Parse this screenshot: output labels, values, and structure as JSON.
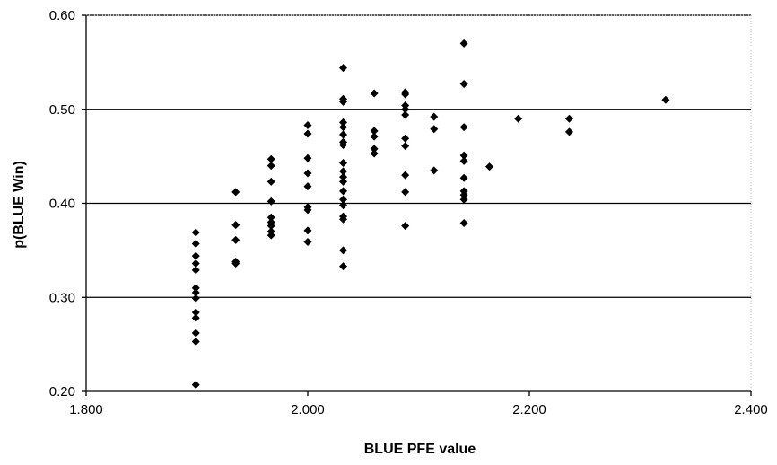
{
  "chart_data": {
    "type": "scatter",
    "title": "",
    "xlabel": "BLUE PFE value",
    "ylabel": "p(BLUE Win)",
    "xlim": [
      1.8,
      2.4
    ],
    "ylim": [
      0.2,
      0.6
    ],
    "x_ticks": [
      1.8,
      2.0,
      2.2,
      2.4
    ],
    "x_tick_labels": [
      "1.800",
      "2.000",
      "2.200",
      "2.400"
    ],
    "y_ticks": [
      0.2,
      0.3,
      0.4,
      0.5,
      0.6
    ],
    "y_tick_labels": [
      "0.20",
      "0.30",
      "0.40",
      "0.50",
      "0.60"
    ],
    "grid": "horizontal major gridlines",
    "legend": "none",
    "marker": "diamond",
    "marker_color": "#000000",
    "series": [
      {
        "points": [
          [
            1.899,
            0.369
          ],
          [
            1.899,
            0.357
          ],
          [
            1.899,
            0.344
          ],
          [
            1.899,
            0.336
          ],
          [
            1.899,
            0.329
          ],
          [
            1.899,
            0.31
          ],
          [
            1.899,
            0.305
          ],
          [
            1.899,
            0.299
          ],
          [
            1.899,
            0.284
          ],
          [
            1.899,
            0.278
          ],
          [
            1.899,
            0.262
          ],
          [
            1.899,
            0.253
          ],
          [
            1.899,
            0.207
          ],
          [
            1.935,
            0.412
          ],
          [
            1.935,
            0.377
          ],
          [
            1.935,
            0.361
          ],
          [
            1.935,
            0.338
          ],
          [
            1.935,
            0.336
          ],
          [
            1.967,
            0.447
          ],
          [
            1.967,
            0.44
          ],
          [
            1.967,
            0.423
          ],
          [
            1.967,
            0.402
          ],
          [
            1.967,
            0.385
          ],
          [
            1.967,
            0.38
          ],
          [
            1.967,
            0.376
          ],
          [
            1.967,
            0.37
          ],
          [
            1.967,
            0.366
          ],
          [
            2.0,
            0.483
          ],
          [
            2.0,
            0.474
          ],
          [
            2.0,
            0.448
          ],
          [
            2.0,
            0.432
          ],
          [
            2.0,
            0.418
          ],
          [
            2.0,
            0.396
          ],
          [
            2.0,
            0.393
          ],
          [
            2.0,
            0.371
          ],
          [
            2.0,
            0.359
          ],
          [
            2.032,
            0.544
          ],
          [
            2.032,
            0.511
          ],
          [
            2.032,
            0.508
          ],
          [
            2.032,
            0.486
          ],
          [
            2.032,
            0.481
          ],
          [
            2.032,
            0.473
          ],
          [
            2.032,
            0.465
          ],
          [
            2.032,
            0.462
          ],
          [
            2.032,
            0.443
          ],
          [
            2.032,
            0.434
          ],
          [
            2.032,
            0.428
          ],
          [
            2.032,
            0.423
          ],
          [
            2.032,
            0.413
          ],
          [
            2.032,
            0.404
          ],
          [
            2.032,
            0.398
          ],
          [
            2.032,
            0.386
          ],
          [
            2.032,
            0.383
          ],
          [
            2.032,
            0.35
          ],
          [
            2.032,
            0.333
          ],
          [
            2.06,
            0.517
          ],
          [
            2.06,
            0.477
          ],
          [
            2.06,
            0.471
          ],
          [
            2.06,
            0.458
          ],
          [
            2.06,
            0.453
          ],
          [
            2.088,
            0.518
          ],
          [
            2.088,
            0.516
          ],
          [
            2.088,
            0.504
          ],
          [
            2.088,
            0.5
          ],
          [
            2.088,
            0.494
          ],
          [
            2.088,
            0.469
          ],
          [
            2.088,
            0.461
          ],
          [
            2.088,
            0.43
          ],
          [
            2.088,
            0.412
          ],
          [
            2.088,
            0.376
          ],
          [
            2.114,
            0.492
          ],
          [
            2.114,
            0.479
          ],
          [
            2.114,
            0.435
          ],
          [
            2.141,
            0.57
          ],
          [
            2.141,
            0.527
          ],
          [
            2.141,
            0.481
          ],
          [
            2.141,
            0.451
          ],
          [
            2.141,
            0.445
          ],
          [
            2.141,
            0.427
          ],
          [
            2.141,
            0.413
          ],
          [
            2.141,
            0.409
          ],
          [
            2.141,
            0.404
          ],
          [
            2.141,
            0.379
          ],
          [
            2.164,
            0.439
          ],
          [
            2.19,
            0.49
          ],
          [
            2.236,
            0.49
          ],
          [
            2.236,
            0.476
          ],
          [
            2.323,
            0.51
          ]
        ]
      }
    ]
  }
}
